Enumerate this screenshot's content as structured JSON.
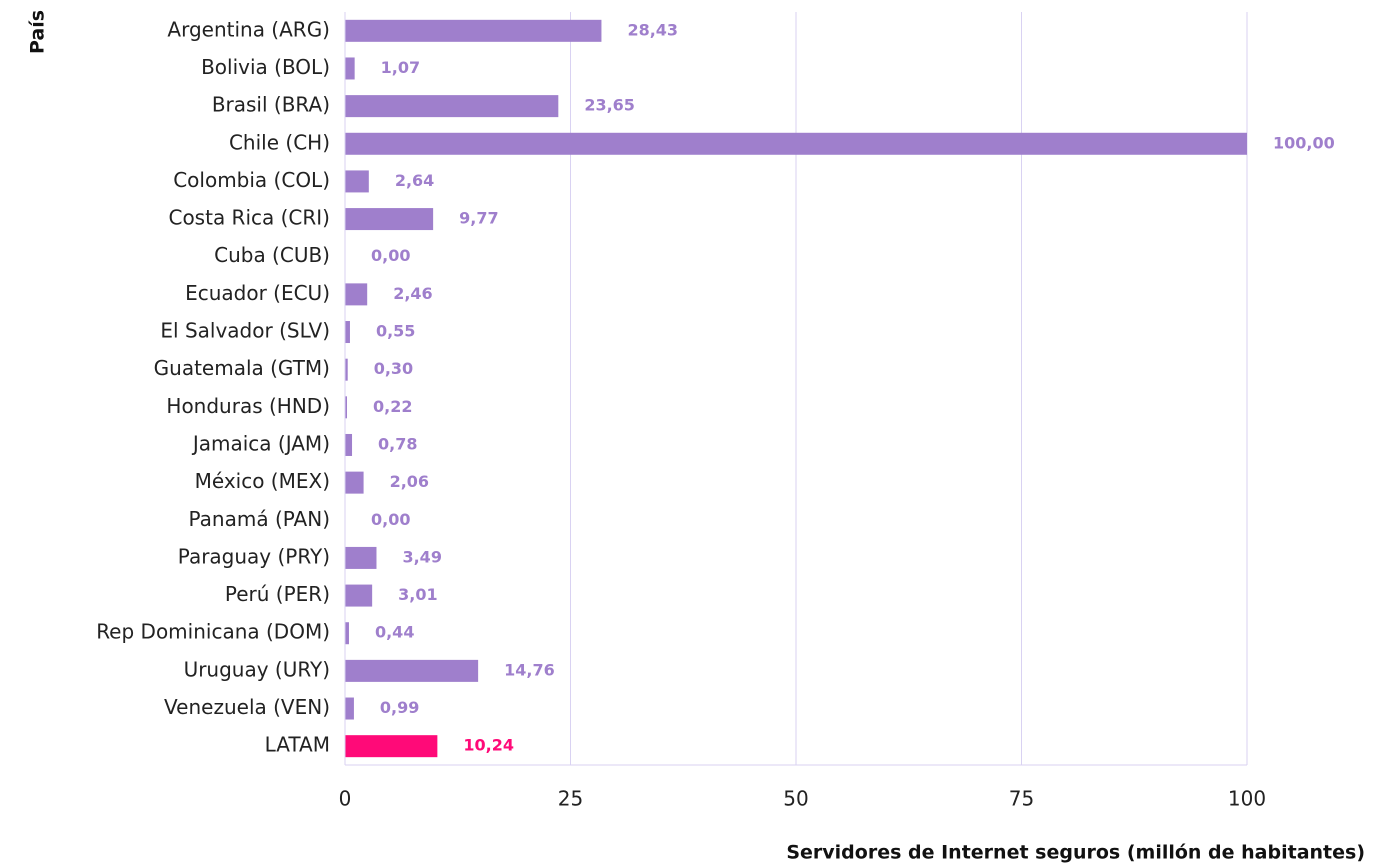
{
  "chart_data": {
    "type": "hbar",
    "y_label": "País",
    "x_label": "Servidores de Internet seguros (millón de habitantes)",
    "categories": [
      "Argentina (ARG)",
      "Bolivia (BOL)",
      "Brasil (BRA)",
      "Chile (CH)",
      "Colombia (COL)",
      "Costa Rica (CRI)",
      "Cuba (CUB)",
      "Ecuador (ECU)",
      "El Salvador (SLV)",
      "Guatemala (GTM)",
      "Honduras (HND)",
      "Jamaica (JAM)",
      "México (MEX)",
      "Panamá (PAN)",
      "Paraguay (PRY)",
      "Perú (PER)",
      "Rep Dominicana (DOM)",
      "Uruguay (URY)",
      "Venezuela (VEN)",
      "LATAM"
    ],
    "values": [
      28.43,
      1.07,
      23.65,
      100.0,
      2.64,
      9.77,
      0.0,
      2.46,
      0.55,
      0.3,
      0.22,
      0.78,
      2.06,
      0.0,
      3.49,
      3.01,
      0.44,
      14.76,
      0.99,
      10.24
    ],
    "value_labels": [
      "28,43",
      "1,07",
      "23,65",
      "100,00",
      "2,64",
      "9,77",
      "0,00",
      "2,46",
      "0,55",
      "0,30",
      "0,22",
      "0,78",
      "2,06",
      "0,00",
      "3,49",
      "3,01",
      "0,44",
      "14,76",
      "0,99",
      "10,24"
    ],
    "colors": [
      "#9f7fcc",
      "#9f7fcc",
      "#9f7fcc",
      "#9f7fcc",
      "#9f7fcc",
      "#9f7fcc",
      "#9f7fcc",
      "#9f7fcc",
      "#9f7fcc",
      "#9f7fcc",
      "#9f7fcc",
      "#9f7fcc",
      "#9f7fcc",
      "#9f7fcc",
      "#9f7fcc",
      "#9f7fcc",
      "#9f7fcc",
      "#9f7fcc",
      "#9f7fcc",
      "#ff0a78"
    ],
    "xlim": [
      0,
      100
    ],
    "xticks": [
      0,
      25,
      50,
      75,
      100
    ],
    "grid": true
  }
}
